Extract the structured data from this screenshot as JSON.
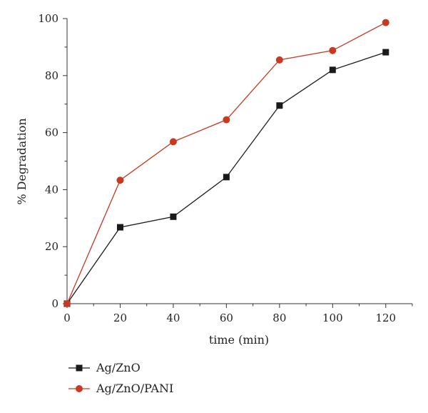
{
  "chart_data": {
    "type": "line",
    "xlabel": "time (min)",
    "ylabel": "% Degradation",
    "x": [
      0,
      20,
      40,
      60,
      80,
      100,
      120
    ],
    "xlim": [
      0,
      130
    ],
    "ylim": [
      0,
      100
    ],
    "xticks": [
      0,
      20,
      40,
      60,
      80,
      100,
      120
    ],
    "yticks": [
      0,
      20,
      40,
      60,
      80,
      100
    ],
    "grid": false,
    "legend_position": "bottom-left",
    "series": [
      {
        "name": "Ag/ZnO",
        "marker": "square",
        "color": "#1a1a1a",
        "values": [
          0,
          26.8,
          30.5,
          44.4,
          69.5,
          82.0,
          88.2
        ]
      },
      {
        "name": "Ag/ZnO/PANI",
        "marker": "circle",
        "color": "#c8391f",
        "values": [
          0,
          43.3,
          56.8,
          64.5,
          85.5,
          88.8,
          98.6
        ]
      }
    ]
  }
}
